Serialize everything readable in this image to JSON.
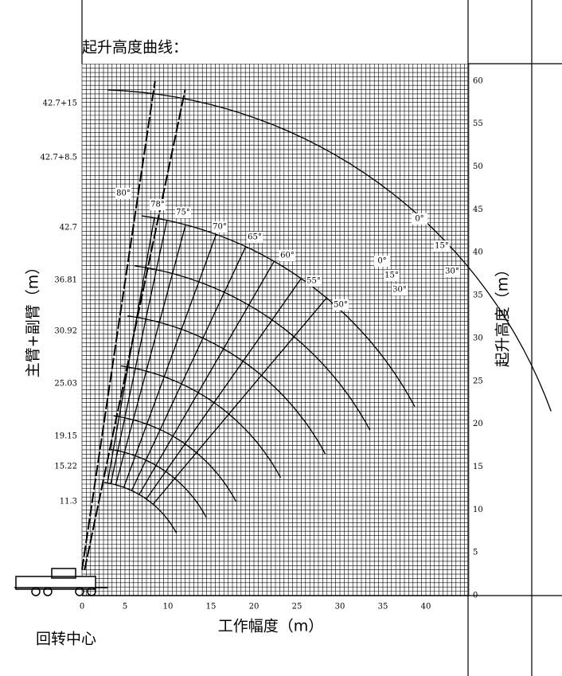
{
  "title": "起升高度曲线：",
  "y_axis_label": "主臂+副臂（m）",
  "right_axis_label": "起升高度（m）",
  "x_axis_label": "工作幅度（m）",
  "center_label": "回转中心",
  "x_ticks": [
    "0",
    "5",
    "10",
    "15",
    "20",
    "25",
    "30",
    "35",
    "40"
  ],
  "y_ticks": [
    "0",
    "5",
    "10",
    "15",
    "20",
    "25",
    "30",
    "35",
    "40",
    "45",
    "50",
    "55",
    "60"
  ],
  "boom_lengths": [
    "42.7+15",
    "42.7+8.5",
    "42.7",
    "36.81",
    "30.92",
    "25.03",
    "19.15",
    "15.22",
    "11.3"
  ],
  "angle_labels": [
    "80°",
    "78°",
    "75°",
    "70°",
    "65°",
    "60°",
    "55°",
    "50°",
    "0°",
    "15°",
    "30°",
    "0°",
    "15°",
    "30°"
  ]
}
